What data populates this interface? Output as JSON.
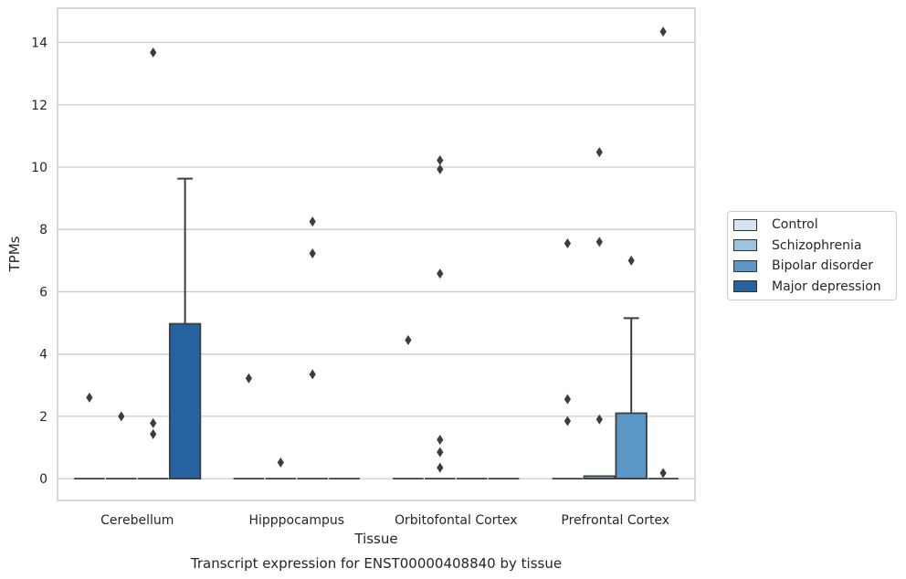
{
  "chart_data": {
    "type": "box",
    "xlabel": "Tissue",
    "ylabel": "TPMs",
    "caption": "Transcript expression for ENST00000408840 by tissue",
    "ylim": [
      -0.7,
      15.1
    ],
    "yticks": [
      0,
      2,
      4,
      6,
      8,
      10,
      12,
      14
    ],
    "grid": true,
    "legend_position": "right",
    "categories": [
      "Cerebellum",
      "Hipppocampus",
      "Orbitofontal Cortex",
      "Prefrontal Cortex"
    ],
    "series": [
      {
        "name": "Control",
        "color": "#d6e3f0",
        "boxes": [
          {
            "q1": 0,
            "median": 0,
            "q3": 0,
            "whisker_low": 0,
            "whisker_high": 0,
            "outliers": [
              2.6
            ]
          },
          {
            "q1": 0,
            "median": 0,
            "q3": 0,
            "whisker_low": 0,
            "whisker_high": 0,
            "outliers": [
              3.22
            ]
          },
          {
            "q1": 0,
            "median": 0,
            "q3": 0,
            "whisker_low": 0,
            "whisker_high": 0,
            "outliers": [
              4.45
            ]
          },
          {
            "q1": 0,
            "median": 0,
            "q3": 0,
            "whisker_low": 0,
            "whisker_high": 0,
            "outliers": [
              7.55,
              2.55,
              1.85
            ]
          }
        ]
      },
      {
        "name": "Schizophrenia",
        "color": "#9dc3de",
        "boxes": [
          {
            "q1": 0,
            "median": 0,
            "q3": 0,
            "whisker_low": 0,
            "whisker_high": 0,
            "outliers": [
              2.0
            ]
          },
          {
            "q1": 0,
            "median": 0,
            "q3": 0,
            "whisker_low": 0,
            "whisker_high": 0,
            "outliers": [
              0.52
            ]
          },
          {
            "q1": 0,
            "median": 0,
            "q3": 0,
            "whisker_low": 0,
            "whisker_high": 0,
            "outliers": [
              10.22,
              9.93,
              6.58,
              1.25,
              0.85,
              0.35
            ]
          },
          {
            "q1": 0,
            "median": 0,
            "q3": 0.08,
            "whisker_low": 0,
            "whisker_high": 0.08,
            "outliers": [
              10.48,
              7.6,
              1.9
            ]
          }
        ]
      },
      {
        "name": "Bipolar disorder",
        "color": "#5a97c6",
        "boxes": [
          {
            "q1": 0,
            "median": 0,
            "q3": 0,
            "whisker_low": 0,
            "whisker_high": 0,
            "outliers": [
              13.68,
              1.78,
              1.43
            ]
          },
          {
            "q1": 0,
            "median": 0,
            "q3": 0,
            "whisker_low": 0,
            "whisker_high": 0,
            "outliers": [
              8.25,
              7.23,
              3.35
            ]
          },
          {
            "q1": 0,
            "median": 0,
            "q3": 0,
            "whisker_low": 0,
            "whisker_high": 0,
            "outliers": []
          },
          {
            "q1": 0,
            "median": 0,
            "q3": 2.1,
            "whisker_low": 0,
            "whisker_high": 5.15,
            "outliers": [
              7.0
            ]
          }
        ]
      },
      {
        "name": "Major depression",
        "color": "#2762a0",
        "boxes": [
          {
            "q1": 0,
            "median": 0,
            "q3": 4.97,
            "whisker_low": 0,
            "whisker_high": 9.63,
            "outliers": []
          },
          {
            "q1": 0,
            "median": 0,
            "q3": 0,
            "whisker_low": 0,
            "whisker_high": 0,
            "outliers": []
          },
          {
            "q1": 0,
            "median": 0,
            "q3": 0,
            "whisker_low": 0,
            "whisker_high": 0,
            "outliers": []
          },
          {
            "q1": 0,
            "median": 0,
            "q3": 0,
            "whisker_low": 0,
            "whisker_high": 0,
            "outliers": [
              14.35,
              0.18
            ]
          }
        ]
      }
    ]
  }
}
